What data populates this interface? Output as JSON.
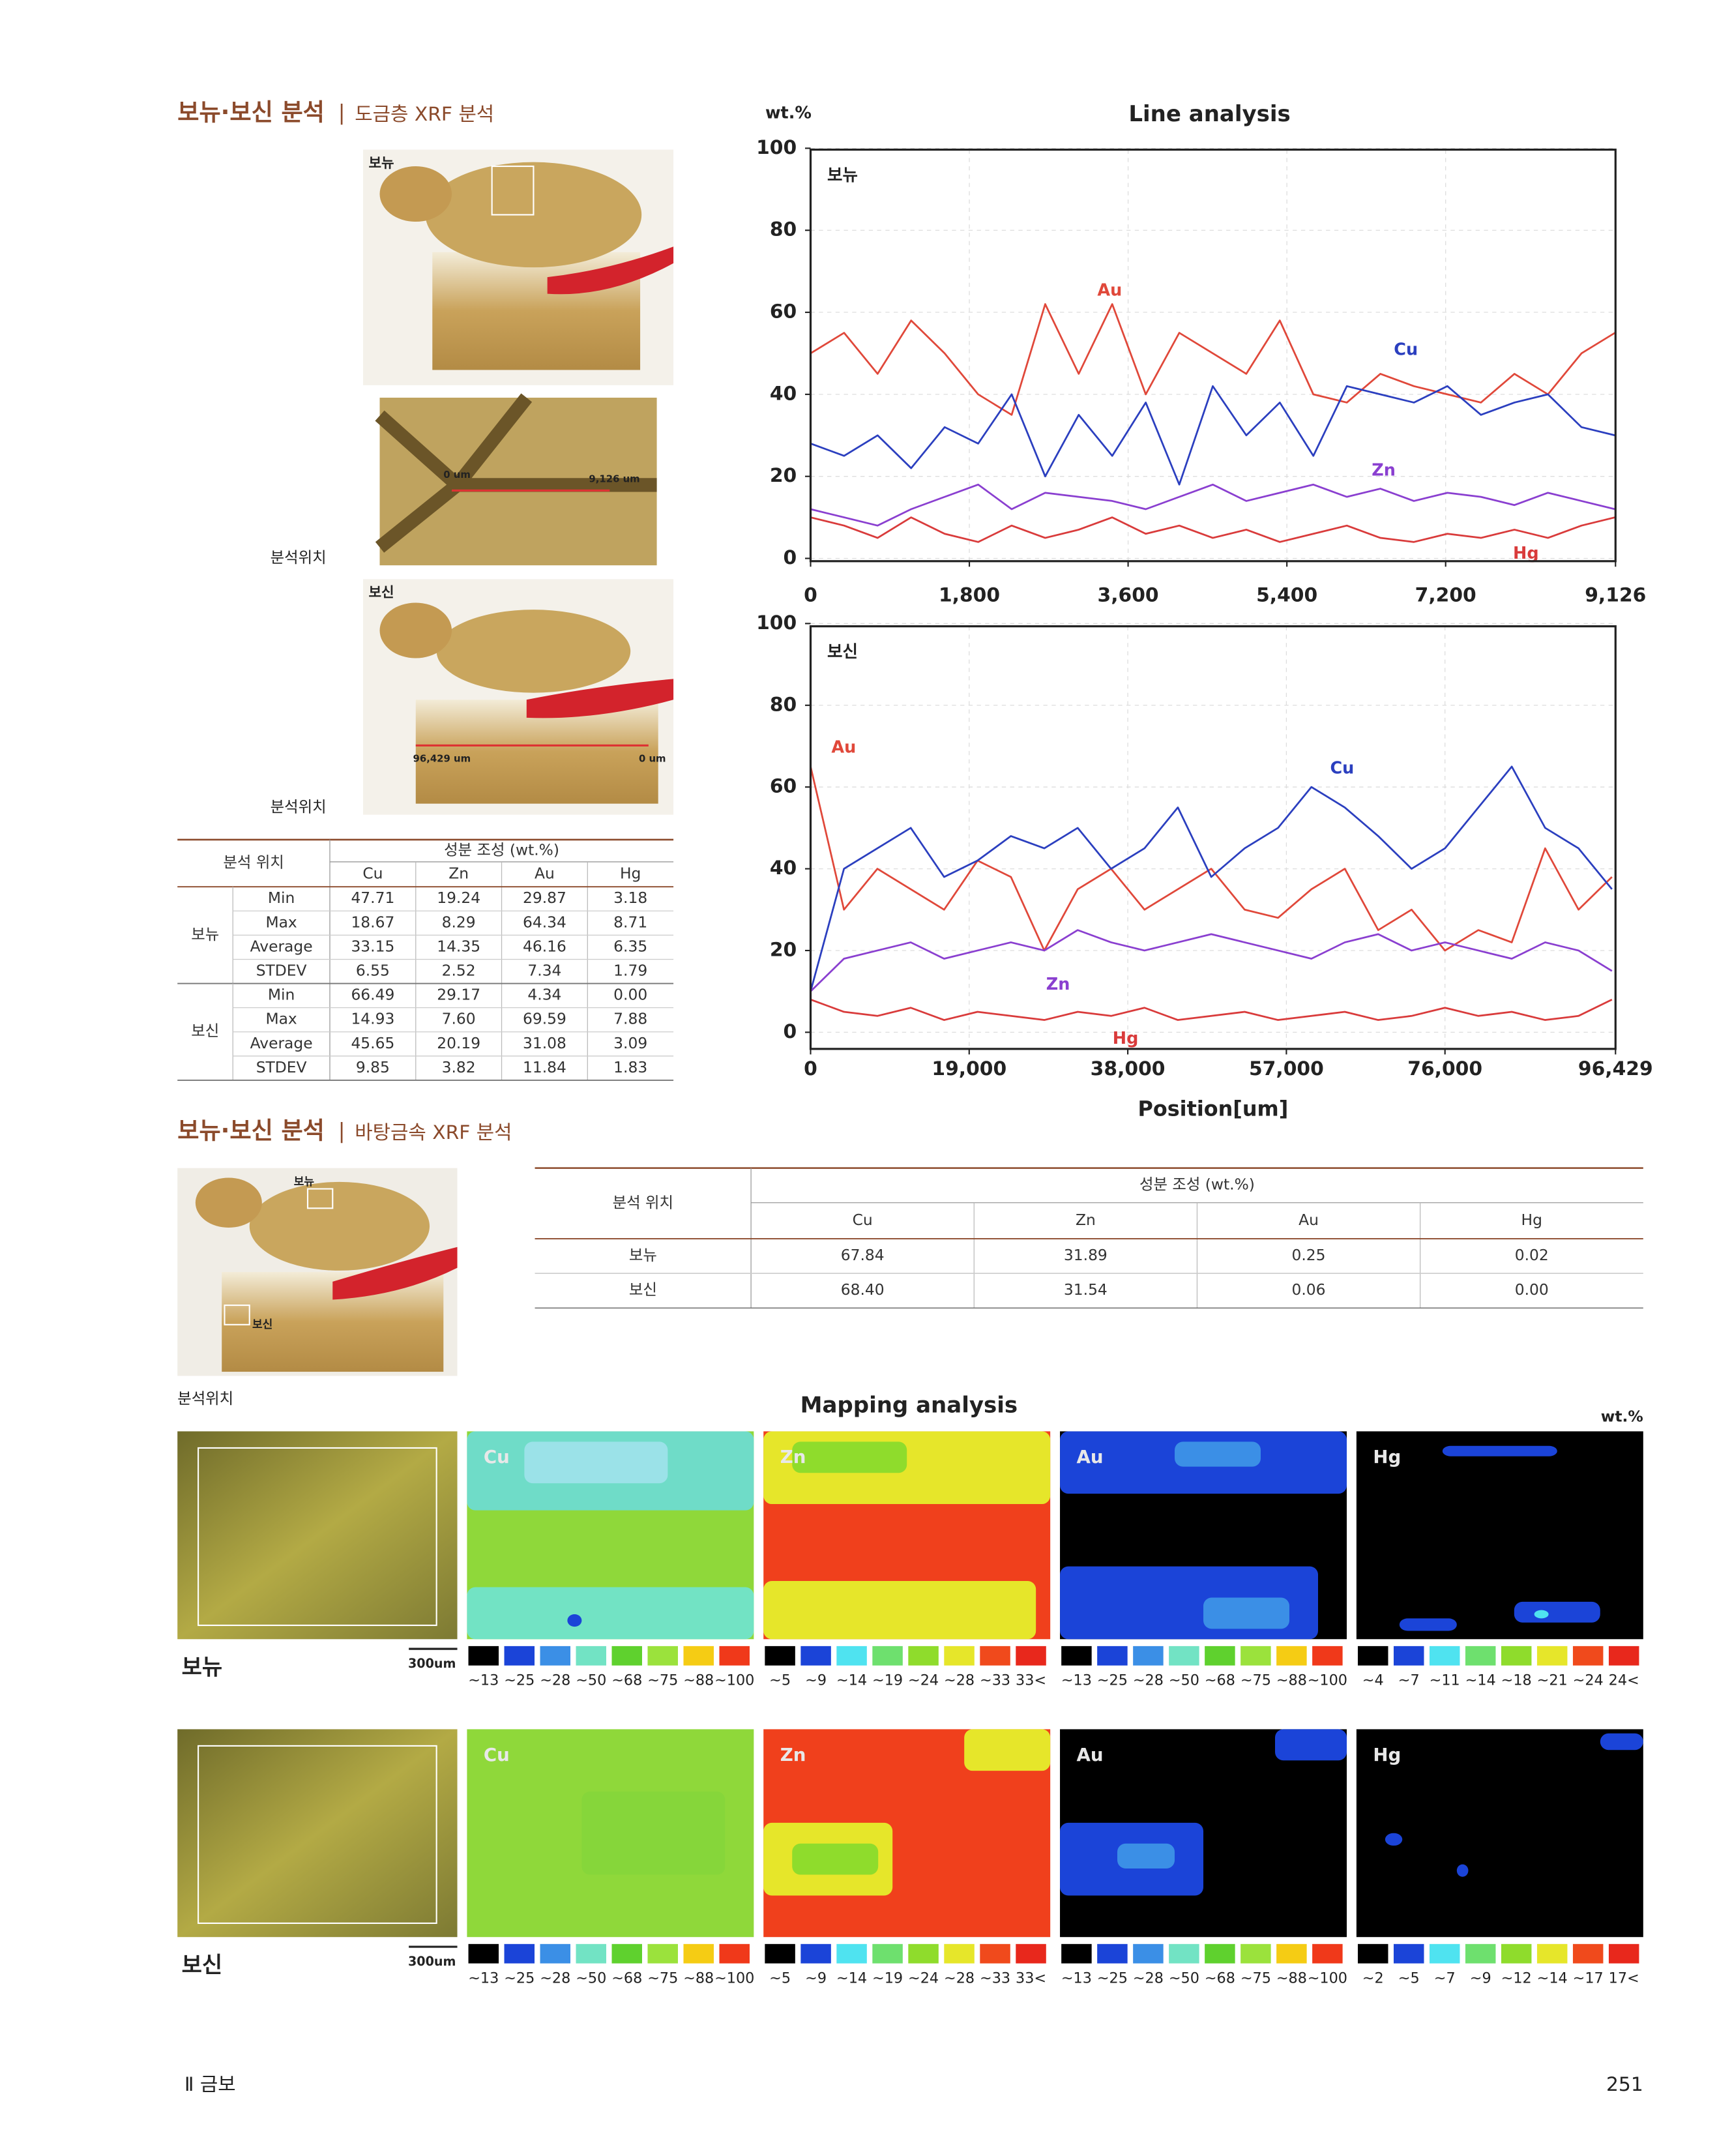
{
  "section1": {
    "title": "보뉴·보신 분석",
    "separator": "|",
    "subtitle": "도금층 XRF 분석"
  },
  "photos": {
    "labels": [
      "보뉴",
      "보신"
    ],
    "captions": [
      "분석위치",
      "분석위치"
    ],
    "measure1": [
      "0 um",
      "9,126 um"
    ],
    "measure2": [
      "96,429 um",
      "0 um"
    ]
  },
  "table1": {
    "header": "분석 위치",
    "group_header": "성분 조성 (wt.%)",
    "columns": [
      "Cu",
      "Zn",
      "Au",
      "Hg"
    ],
    "groups": [
      {
        "name": "보뉴",
        "rows": [
          {
            "stat": "Min",
            "values": [
              "47.71",
              "19.24",
              "29.87",
              "3.18"
            ]
          },
          {
            "stat": "Max",
            "values": [
              "18.67",
              "8.29",
              "64.34",
              "8.71"
            ]
          },
          {
            "stat": "Average",
            "values": [
              "33.15",
              "14.35",
              "46.16",
              "6.35"
            ]
          },
          {
            "stat": "STDEV",
            "values": [
              "6.55",
              "2.52",
              "7.34",
              "1.79"
            ]
          }
        ]
      },
      {
        "name": "보신",
        "rows": [
          {
            "stat": "Min",
            "values": [
              "66.49",
              "29.17",
              "4.34",
              "0.00"
            ]
          },
          {
            "stat": "Max",
            "values": [
              "14.93",
              "7.60",
              "69.59",
              "7.88"
            ]
          },
          {
            "stat": "Average",
            "values": [
              "45.65",
              "20.19",
              "31.08",
              "3.09"
            ]
          },
          {
            "stat": "STDEV",
            "values": [
              "9.85",
              "3.82",
              "11.84",
              "1.83"
            ]
          }
        ]
      }
    ]
  },
  "chart_data": [
    {
      "type": "line",
      "title": "Line analysis",
      "y_label": "wt.%",
      "panel_label": "보뉴",
      "x": [
        0,
        380,
        760,
        1140,
        1520,
        1900,
        2280,
        2660,
        3040,
        3420,
        3800,
        4180,
        4560,
        4940,
        5320,
        5700,
        6080,
        6460,
        6840,
        7220,
        7600,
        7980,
        8360,
        8740,
        9120
      ],
      "xlim": [
        0,
        9126
      ],
      "xticks": [
        0,
        {
          "value": 1800,
          "label": "1,800"
        },
        {
          "value": 3600,
          "label": "3,600"
        },
        {
          "value": 5400,
          "label": "5,400"
        },
        {
          "value": 7200,
          "label": "7,200"
        },
        {
          "value": 9126,
          "label": "9,126"
        }
      ],
      "ylim": [
        0,
        100
      ],
      "yticks": [
        0,
        20,
        40,
        60,
        80,
        100
      ],
      "grid": true,
      "series": [
        {
          "name": "Au",
          "color": "#e0483a",
          "values": [
            50,
            55,
            45,
            58,
            50,
            40,
            35,
            62,
            45,
            62,
            40,
            55,
            50,
            45,
            58,
            40,
            38,
            45,
            42,
            40,
            38,
            45,
            40,
            50,
            55
          ]
        },
        {
          "name": "Cu",
          "color": "#2b3fbf",
          "values": [
            28,
            25,
            30,
            22,
            32,
            28,
            40,
            20,
            35,
            25,
            38,
            18,
            42,
            30,
            38,
            25,
            42,
            40,
            38,
            42,
            35,
            38,
            40,
            32,
            30
          ]
        },
        {
          "name": "Zn",
          "color": "#8a3fd0",
          "values": [
            12,
            10,
            8,
            12,
            15,
            18,
            12,
            16,
            15,
            14,
            12,
            15,
            18,
            14,
            16,
            18,
            15,
            17,
            14,
            16,
            15,
            13,
            16,
            14,
            12
          ]
        },
        {
          "name": "Hg",
          "color": "#d93b3b",
          "values": [
            10,
            8,
            5,
            10,
            6,
            4,
            8,
            5,
            7,
            10,
            6,
            8,
            5,
            7,
            4,
            6,
            8,
            5,
            4,
            6,
            5,
            7,
            5,
            8,
            10
          ]
        }
      ]
    },
    {
      "type": "line",
      "panel_label": "보신",
      "x_label": "Position[um]",
      "x": [
        0,
        4000,
        8000,
        12000,
        16000,
        20000,
        24000,
        28000,
        32000,
        36000,
        40000,
        44000,
        48000,
        52000,
        56000,
        60000,
        64000,
        68000,
        72000,
        76000,
        80000,
        84000,
        88000,
        92000,
        96000
      ],
      "xlim": [
        0,
        96429
      ],
      "xticks": [
        0,
        {
          "value": 19000,
          "label": "19,000"
        },
        {
          "value": 38000,
          "label": "38,000"
        },
        {
          "value": 57000,
          "label": "57,000"
        },
        {
          "value": 76000,
          "label": "76,000"
        },
        {
          "value": 96429,
          "label": "96,429"
        }
      ],
      "ylim": [
        0,
        100
      ],
      "yticks": [
        0,
        20,
        40,
        60,
        80,
        100
      ],
      "grid": true,
      "series": [
        {
          "name": "Au",
          "color": "#e0483a",
          "values": [
            65,
            30,
            40,
            35,
            30,
            42,
            38,
            20,
            35,
            40,
            30,
            35,
            40,
            30,
            28,
            35,
            40,
            25,
            30,
            20,
            25,
            22,
            45,
            30,
            38
          ]
        },
        {
          "name": "Cu",
          "color": "#2b3fbf",
          "values": [
            10,
            40,
            45,
            50,
            38,
            42,
            48,
            45,
            50,
            40,
            45,
            55,
            38,
            45,
            50,
            60,
            55,
            48,
            40,
            45,
            55,
            65,
            50,
            45,
            35
          ]
        },
        {
          "name": "Zn",
          "color": "#8a3fd0",
          "values": [
            10,
            18,
            20,
            22,
            18,
            20,
            22,
            20,
            25,
            22,
            20,
            22,
            24,
            22,
            20,
            18,
            22,
            24,
            20,
            22,
            20,
            18,
            22,
            20,
            15
          ]
        },
        {
          "name": "Hg",
          "color": "#d93b3b",
          "values": [
            8,
            5,
            4,
            6,
            3,
            5,
            4,
            3,
            5,
            4,
            6,
            3,
            4,
            5,
            3,
            4,
            5,
            3,
            4,
            6,
            4,
            5,
            3,
            4,
            8
          ]
        }
      ]
    }
  ],
  "section2": {
    "title": "보뉴·보신 분석",
    "separator": "|",
    "subtitle": "바탕금속 XRF 분석"
  },
  "photo2": {
    "labels": [
      "보뉴",
      "보신"
    ],
    "caption": "분석위치"
  },
  "table2": {
    "header": "분석 위치",
    "group_header": "성분 조성 (wt.%)",
    "columns": [
      "Cu",
      "Zn",
      "Au",
      "Hg"
    ],
    "rows": [
      {
        "name": "보뉴",
        "values": [
          "67.84",
          "31.89",
          "0.25",
          "0.02"
        ]
      },
      {
        "name": "보신",
        "values": [
          "68.40",
          "31.54",
          "0.06",
          "0.00"
        ]
      }
    ]
  },
  "mapping": {
    "title": "Mapping analysis",
    "unit": "wt.%",
    "scale": "300um",
    "rows": [
      {
        "name": "보뉴",
        "panels": [
          {
            "element": "Cu",
            "colors": [
              "#000000",
              "#1b44d8",
              "#3b8fe6",
              "#72e3c4",
              "#5fd12e",
              "#9be23c",
              "#f5cc14",
              "#f0391a"
            ],
            "labels": [
              "~13",
              "~25",
              "~28",
              "~50",
              "~68",
              "~75",
              "~88",
              "~100"
            ]
          },
          {
            "element": "Zn",
            "colors": [
              "#000000",
              "#1b44d8",
              "#4fe3f0",
              "#6ee06e",
              "#8fdc2c",
              "#e6e62a",
              "#f04a1c",
              "#e8281c"
            ],
            "labels": [
              "~5",
              "~9",
              "~14",
              "~19",
              "~24",
              "~28",
              "~33",
              "33<"
            ]
          },
          {
            "element": "Au",
            "colors": [
              "#000000",
              "#1b44d8",
              "#3b8fe6",
              "#72e3c4",
              "#5fd12e",
              "#9be23c",
              "#f5cc14",
              "#f0391a"
            ],
            "labels": [
              "~13",
              "~25",
              "~28",
              "~50",
              "~68",
              "~75",
              "~88",
              "~100"
            ]
          },
          {
            "element": "Hg",
            "colors": [
              "#000000",
              "#1b44d8",
              "#4fe3f0",
              "#6ee06e",
              "#8fdc2c",
              "#e6e62a",
              "#f04a1c",
              "#e8281c"
            ],
            "labels": [
              "~4",
              "~7",
              "~11",
              "~14",
              "~18",
              "~21",
              "~24",
              "24<"
            ]
          }
        ]
      },
      {
        "name": "보신",
        "panels": [
          {
            "element": "Cu",
            "colors": [
              "#000000",
              "#1b44d8",
              "#3b8fe6",
              "#72e3c4",
              "#5fd12e",
              "#9be23c",
              "#f5cc14",
              "#f0391a"
            ],
            "labels": [
              "~13",
              "~25",
              "~28",
              "~50",
              "~68",
              "~75",
              "~88",
              "~100"
            ]
          },
          {
            "element": "Zn",
            "colors": [
              "#000000",
              "#1b44d8",
              "#4fe3f0",
              "#6ee06e",
              "#8fdc2c",
              "#e6e62a",
              "#f04a1c",
              "#e8281c"
            ],
            "labels": [
              "~5",
              "~9",
              "~14",
              "~19",
              "~24",
              "~28",
              "~33",
              "33<"
            ]
          },
          {
            "element": "Au",
            "colors": [
              "#000000",
              "#1b44d8",
              "#3b8fe6",
              "#72e3c4",
              "#5fd12e",
              "#9be23c",
              "#f5cc14",
              "#f0391a"
            ],
            "labels": [
              "~13",
              "~25",
              "~28",
              "~50",
              "~68",
              "~75",
              "~88",
              "~100"
            ]
          },
          {
            "element": "Hg",
            "colors": [
              "#000000",
              "#1b44d8",
              "#4fe3f0",
              "#6ee06e",
              "#8fdc2c",
              "#e6e62a",
              "#f04a1c",
              "#e8281c"
            ],
            "labels": [
              "~2",
              "~5",
              "~7",
              "~9",
              "~12",
              "~14",
              "~17",
              "17<"
            ]
          }
        ]
      }
    ]
  },
  "footer": {
    "left": "Ⅱ 금보",
    "page": "251"
  }
}
